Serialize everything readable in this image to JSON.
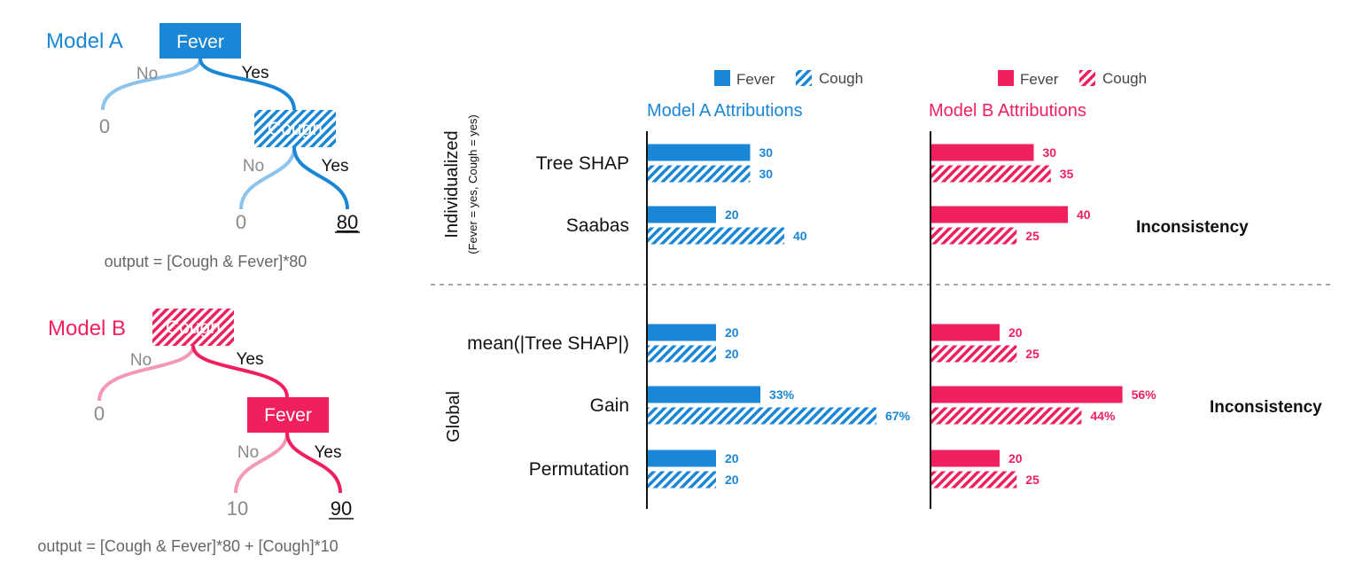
{
  "colors": {
    "blue": "#1a86d6",
    "blue_light": "#8cc4ee",
    "pink": "#f01f5d",
    "pink_light": "#f598b3",
    "gray_text": "#8a8a8a",
    "dark_text": "#111111",
    "divider": "#888888"
  },
  "trees": {
    "model_a": {
      "title": "Model A",
      "root": "Fever",
      "inner": "Cough",
      "branch_no": "No",
      "branch_yes": "Yes",
      "leaves": [
        "0",
        "0",
        "80"
      ],
      "output": "output = [Cough & Fever]*80"
    },
    "model_b": {
      "title": "Model B",
      "root": "Cough",
      "inner": "Fever",
      "branch_no": "No",
      "branch_yes": "Yes",
      "leaves": [
        "0",
        "10",
        "90"
      ],
      "output": "output = [Cough & Fever]*80 + [Cough]*10"
    }
  },
  "legend": {
    "fever": "Fever",
    "cough": "Cough"
  },
  "panel_titles": {
    "a": "Model A Attributions",
    "b": "Model B Attributions"
  },
  "groups": {
    "individualized": "Individualized",
    "individualized_sub": "(Fever = yes, Cough = yes)",
    "global": "Global"
  },
  "inconsistency_label": "Inconsistency",
  "chart_data": {
    "type": "bar",
    "orientation": "horizontal",
    "categories": [
      "Tree SHAP",
      "Saabas",
      "mean(|Tree SHAP|)",
      "Gain",
      "Permutation"
    ],
    "panels": [
      {
        "title": "Model A Attributions",
        "series": [
          {
            "name": "Fever",
            "values": [
              30,
              20,
              20,
              33,
              20
            ],
            "labels": [
              "30",
              "20",
              "20",
              "33%",
              "20"
            ]
          },
          {
            "name": "Cough",
            "values": [
              30,
              40,
              20,
              67,
              20
            ],
            "labels": [
              "30",
              "40",
              "20",
              "67%",
              "20"
            ]
          }
        ]
      },
      {
        "title": "Model B Attributions",
        "series": [
          {
            "name": "Fever",
            "values": [
              30,
              40,
              20,
              56,
              20
            ],
            "labels": [
              "30",
              "40",
              "20",
              "56%",
              "20"
            ]
          },
          {
            "name": "Cough",
            "values": [
              35,
              25,
              25,
              44,
              25
            ],
            "labels": [
              "35",
              "25",
              "25",
              "44%",
              "25"
            ]
          }
        ]
      }
    ],
    "annotations": [
      {
        "text": "Inconsistency",
        "panel": "Model B Attributions",
        "category": "Saabas"
      },
      {
        "text": "Inconsistency",
        "panel": "Model B Attributions",
        "category": "Gain"
      }
    ]
  }
}
